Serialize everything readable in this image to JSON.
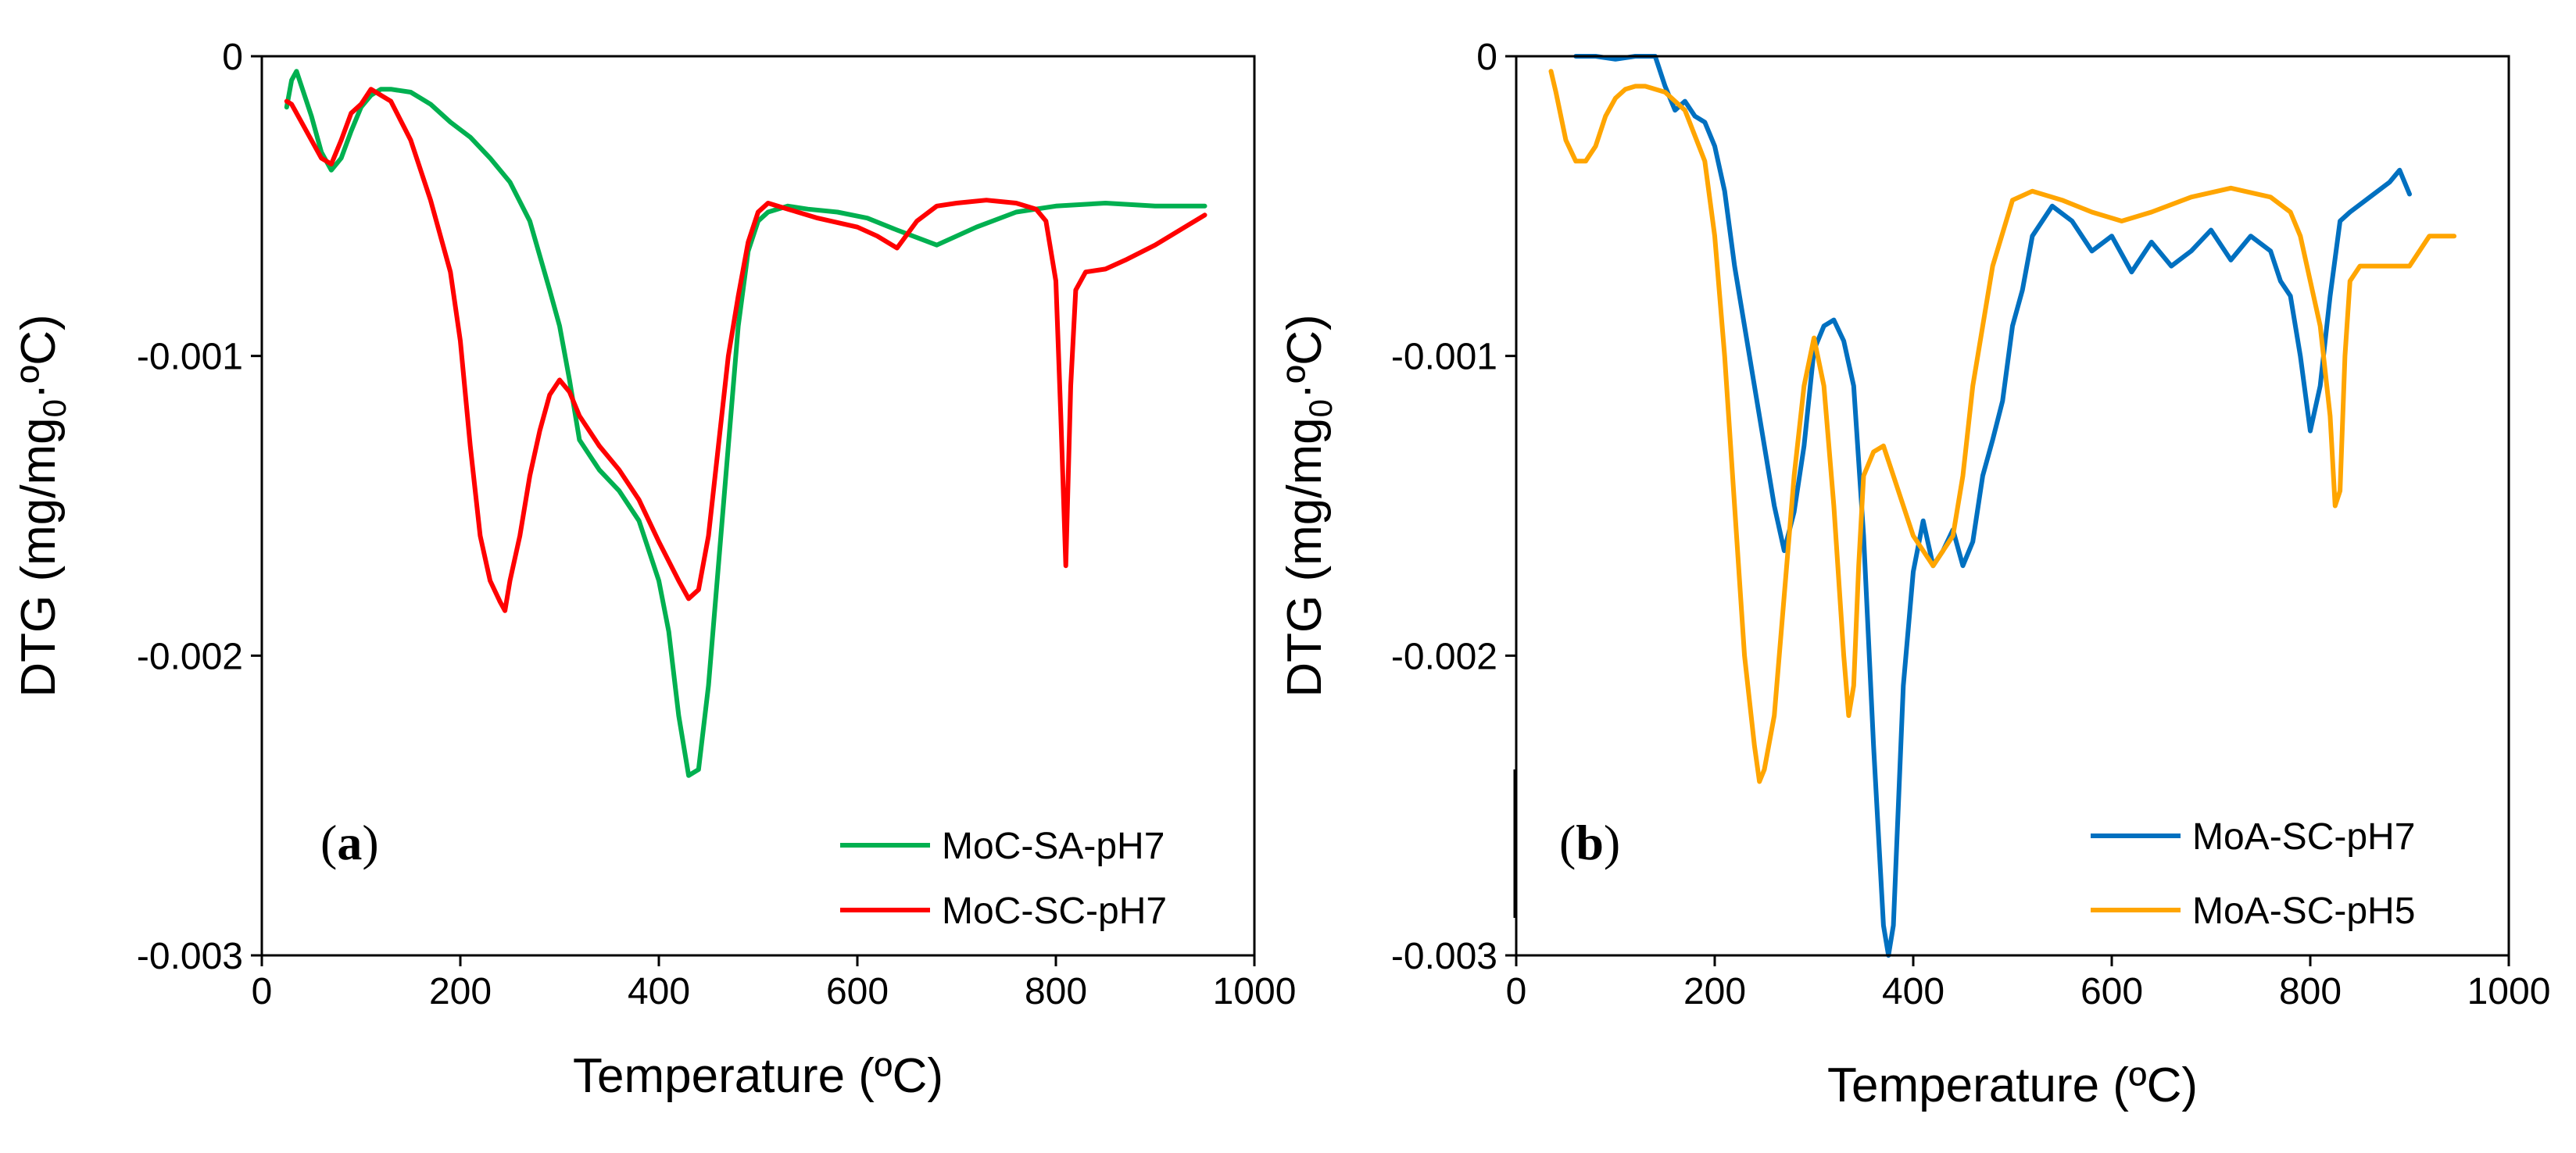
{
  "chart_data": [
    {
      "type": "line",
      "panel_label": "a",
      "xlabel": "Temperature (ºC)",
      "ylabel_main": "DTG (mg/mg",
      "ylabel_sub": "0",
      "ylabel_tail": "·ºC)",
      "xlim": [
        0,
        1000
      ],
      "ylim": [
        -0.003,
        0
      ],
      "x_ticks": [
        0,
        200,
        400,
        600,
        800,
        1000
      ],
      "x_tick_labels": [
        "0",
        "200",
        "400",
        "600",
        "800",
        "1000"
      ],
      "y_ticks": [
        0,
        -0.001,
        -0.002,
        -0.003
      ],
      "y_tick_labels": [
        "0",
        "-0.001",
        "-0.002",
        "-0.003"
      ],
      "legend_position": "bottom-right",
      "series": [
        {
          "name": "MoC-SA-pH7",
          "color": "#00B050",
          "x": [
            25,
            30,
            35,
            40,
            50,
            60,
            70,
            80,
            90,
            100,
            110,
            120,
            130,
            150,
            170,
            190,
            210,
            230,
            250,
            270,
            290,
            300,
            310,
            320,
            340,
            360,
            380,
            400,
            410,
            420,
            430,
            440,
            450,
            460,
            470,
            480,
            490,
            500,
            510,
            530,
            550,
            580,
            610,
            640,
            680,
            720,
            760,
            800,
            850,
            900,
            950
          ],
          "y": [
            -0.00017,
            -8e-05,
            -5e-05,
            -0.0001,
            -0.0002,
            -0.00032,
            -0.00038,
            -0.00034,
            -0.00025,
            -0.00017,
            -0.00013,
            -0.00011,
            -0.00011,
            -0.00012,
            -0.00016,
            -0.00022,
            -0.00027,
            -0.00034,
            -0.00042,
            -0.00055,
            -0.00078,
            -0.0009,
            -0.00108,
            -0.00128,
            -0.00138,
            -0.00145,
            -0.00155,
            -0.00175,
            -0.00192,
            -0.0022,
            -0.0024,
            -0.00238,
            -0.0021,
            -0.0017,
            -0.0013,
            -0.0009,
            -0.00065,
            -0.00055,
            -0.00052,
            -0.0005,
            -0.00051,
            -0.00052,
            -0.00054,
            -0.00058,
            -0.00063,
            -0.00057,
            -0.00052,
            -0.0005,
            -0.00049,
            -0.0005,
            -0.0005
          ]
        },
        {
          "name": "MoC-SC-pH7",
          "color": "#FF0000",
          "x": [
            25,
            30,
            40,
            50,
            60,
            70,
            80,
            90,
            100,
            110,
            120,
            130,
            150,
            170,
            190,
            200,
            210,
            220,
            230,
            240,
            245,
            250,
            260,
            270,
            280,
            290,
            300,
            310,
            320,
            340,
            360,
            380,
            400,
            420,
            430,
            440,
            450,
            460,
            470,
            480,
            490,
            500,
            510,
            530,
            560,
            600,
            620,
            640,
            660,
            680,
            700,
            730,
            760,
            780,
            790,
            800,
            805,
            810,
            815,
            820,
            830,
            850,
            870,
            900,
            950
          ],
          "y": [
            -0.00015,
            -0.00016,
            -0.00022,
            -0.00028,
            -0.00034,
            -0.00036,
            -0.00028,
            -0.00019,
            -0.00016,
            -0.00011,
            -0.00013,
            -0.00015,
            -0.00028,
            -0.00048,
            -0.00072,
            -0.00095,
            -0.0013,
            -0.0016,
            -0.00175,
            -0.00182,
            -0.00185,
            -0.00175,
            -0.0016,
            -0.0014,
            -0.00125,
            -0.00113,
            -0.00108,
            -0.00112,
            -0.0012,
            -0.0013,
            -0.00138,
            -0.00148,
            -0.00162,
            -0.00175,
            -0.00181,
            -0.00178,
            -0.0016,
            -0.0013,
            -0.001,
            -0.0008,
            -0.00062,
            -0.00052,
            -0.00049,
            -0.00051,
            -0.00054,
            -0.00057,
            -0.0006,
            -0.00064,
            -0.00055,
            -0.0005,
            -0.00049,
            -0.00048,
            -0.00049,
            -0.00051,
            -0.00055,
            -0.00075,
            -0.0012,
            -0.0017,
            -0.0011,
            -0.00078,
            -0.00072,
            -0.00071,
            -0.00068,
            -0.00063,
            -0.00053
          ]
        }
      ]
    },
    {
      "type": "line",
      "panel_label": "b",
      "xlabel": "Temperature (ºC)",
      "ylabel_main": "DTG (mg/mg",
      "ylabel_sub": "0",
      "ylabel_tail": "·ºC)",
      "xlim": [
        0,
        1000
      ],
      "ylim": [
        -0.003,
        0
      ],
      "x_ticks": [
        0,
        200,
        400,
        600,
        800,
        1000
      ],
      "x_tick_labels": [
        "0",
        "200",
        "400",
        "600",
        "800",
        "1000"
      ],
      "y_ticks": [
        0,
        -0.001,
        -0.002,
        -0.003
      ],
      "y_tick_labels": [
        "0",
        "-0.001",
        "-0.002",
        "-0.003"
      ],
      "legend_position": "bottom-right",
      "series": [
        {
          "name": "MoA-SC-pH7",
          "color": "#0070C0",
          "x": [
            60,
            80,
            100,
            120,
            140,
            150,
            160,
            170,
            180,
            190,
            200,
            210,
            220,
            230,
            240,
            250,
            260,
            270,
            280,
            290,
            300,
            310,
            320,
            330,
            340,
            350,
            360,
            370,
            375,
            380,
            390,
            400,
            410,
            420,
            430,
            440,
            450,
            460,
            470,
            480,
            490,
            500,
            510,
            520,
            540,
            560,
            580,
            600,
            620,
            640,
            660,
            680,
            700,
            720,
            740,
            760,
            770,
            780,
            790,
            800,
            810,
            820,
            830,
            840,
            860,
            880,
            890,
            900
          ],
          "y": [
            0,
            0,
            -1e-05,
            0,
            0,
            -0.0001,
            -0.00018,
            -0.00015,
            -0.0002,
            -0.00022,
            -0.0003,
            -0.00045,
            -0.0007,
            -0.0009,
            -0.0011,
            -0.0013,
            -0.0015,
            -0.00165,
            -0.00152,
            -0.0013,
            -0.00098,
            -0.0009,
            -0.00088,
            -0.00095,
            -0.0011,
            -0.0016,
            -0.0023,
            -0.0029,
            -0.003,
            -0.0029,
            -0.0021,
            -0.00172,
            -0.00155,
            -0.0017,
            -0.00165,
            -0.00158,
            -0.0017,
            -0.00162,
            -0.0014,
            -0.00128,
            -0.00115,
            -0.0009,
            -0.00078,
            -0.0006,
            -0.0005,
            -0.00055,
            -0.00065,
            -0.0006,
            -0.00072,
            -0.00062,
            -0.0007,
            -0.00065,
            -0.00058,
            -0.00068,
            -0.0006,
            -0.00065,
            -0.00075,
            -0.0008,
            -0.001,
            -0.00125,
            -0.0011,
            -0.0008,
            -0.00055,
            -0.00052,
            -0.00047,
            -0.00042,
            -0.00038,
            -0.00046
          ]
        },
        {
          "name": "MoA-SC-pH5",
          "color": "#FFA500",
          "x": [
            35,
            40,
            50,
            60,
            70,
            80,
            90,
            100,
            110,
            120,
            130,
            150,
            170,
            190,
            200,
            210,
            220,
            230,
            240,
            245,
            250,
            260,
            270,
            280,
            290,
            300,
            310,
            320,
            330,
            335,
            340,
            345,
            350,
            360,
            370,
            380,
            400,
            420,
            440,
            450,
            460,
            480,
            500,
            520,
            550,
            580,
            610,
            640,
            680,
            720,
            760,
            780,
            790,
            800,
            810,
            820,
            825,
            830,
            835,
            840,
            850,
            870,
            900,
            920,
            945
          ],
          "y": [
            -5e-05,
            -0.00012,
            -0.00028,
            -0.00035,
            -0.00035,
            -0.0003,
            -0.0002,
            -0.00014,
            -0.00011,
            -0.0001,
            -0.0001,
            -0.00012,
            -0.00018,
            -0.00035,
            -0.0006,
            -0.001,
            -0.0015,
            -0.002,
            -0.0023,
            -0.00242,
            -0.00238,
            -0.0022,
            -0.0018,
            -0.0014,
            -0.0011,
            -0.00094,
            -0.0011,
            -0.0015,
            -0.002,
            -0.0022,
            -0.0021,
            -0.0017,
            -0.0014,
            -0.00132,
            -0.0013,
            -0.0014,
            -0.0016,
            -0.0017,
            -0.0016,
            -0.0014,
            -0.0011,
            -0.0007,
            -0.00048,
            -0.00045,
            -0.00048,
            -0.00052,
            -0.00055,
            -0.00052,
            -0.00047,
            -0.00044,
            -0.00047,
            -0.00052,
            -0.0006,
            -0.00075,
            -0.0009,
            -0.0012,
            -0.0015,
            -0.00145,
            -0.001,
            -0.00075,
            -0.0007,
            -0.0007,
            -0.0007,
            -0.0006,
            -0.0006
          ]
        }
      ]
    }
  ]
}
